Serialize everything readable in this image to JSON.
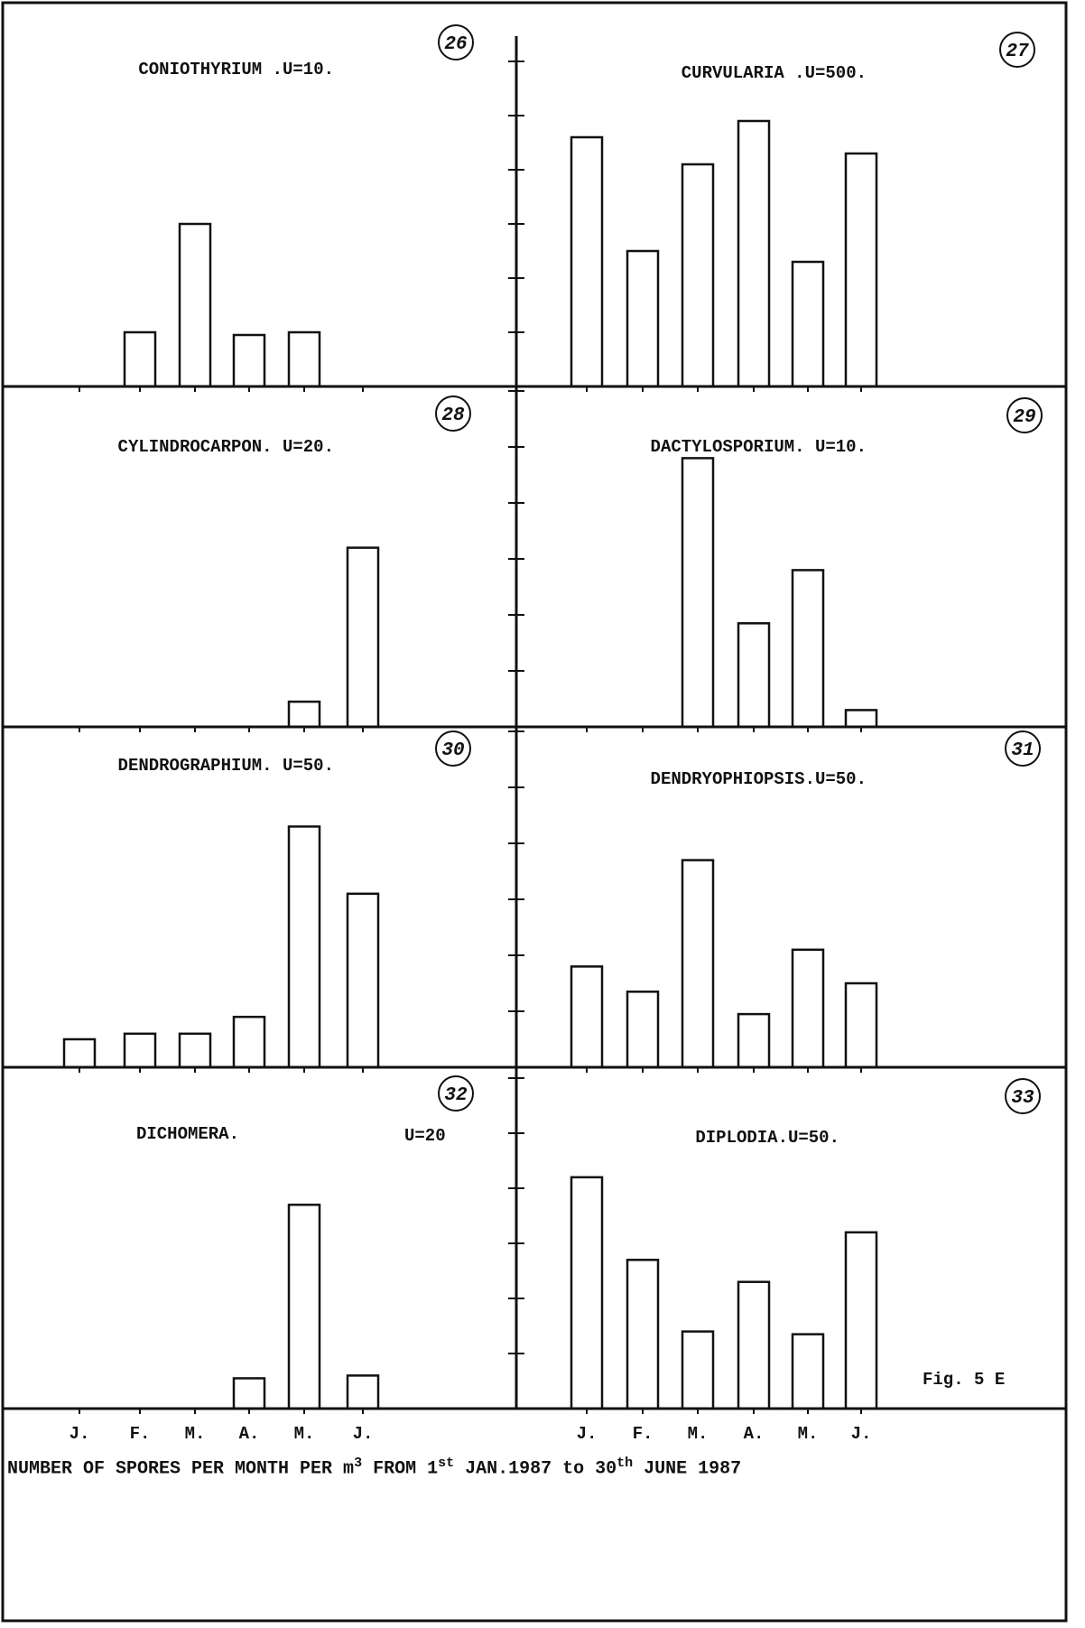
{
  "figure": {
    "label": "Fig. 5 E",
    "caption": {
      "pre": "NUMBER OF SPORES PER MONTH PER m",
      "sup1": "3",
      "mid1": " FROM 1",
      "sup2": "st",
      "mid2": " JAN.1987 to 30",
      "sup3": "th",
      "post": " JUNE 1987"
    },
    "months_left": [
      "J.",
      "F.",
      "M.",
      "A.",
      "M.",
      "J."
    ],
    "months_right": [
      "J.",
      "F.",
      "M.",
      "A.",
      "M.",
      "J."
    ]
  },
  "chart_data": [
    {
      "type": "bar",
      "number": "26",
      "title": "CONIOTHYRIUM .U=10.",
      "unit": 10,
      "categories": [
        "J.",
        "F.",
        "M.",
        "A.",
        "M.",
        "J."
      ],
      "values": [
        0,
        1.0,
        3.0,
        0.95,
        1.0,
        0
      ]
    },
    {
      "type": "bar",
      "number": "27",
      "title": "CURVULARIA .U=500.",
      "unit": 500,
      "categories": [
        "J.",
        "F.",
        "M.",
        "A.",
        "M.",
        "J."
      ],
      "values": [
        4.6,
        2.5,
        4.1,
        4.9,
        2.3,
        4.3
      ]
    },
    {
      "type": "bar",
      "number": "28",
      "title": "CYLINDROCARPON. U=20.",
      "unit": 20,
      "categories": [
        "J.",
        "F.",
        "M.",
        "A.",
        "M.",
        "J."
      ],
      "values": [
        0,
        0,
        0,
        0,
        0.45,
        3.2
      ]
    },
    {
      "type": "bar",
      "number": "29",
      "title": "DACTYLOSPORIUM. U=10.",
      "unit": 10,
      "categories": [
        "J.",
        "F.",
        "M.",
        "A.",
        "M.",
        "J."
      ],
      "values": [
        0,
        0,
        4.8,
        1.85,
        2.8,
        0.3
      ]
    },
    {
      "type": "bar",
      "number": "30",
      "title": "DENDROGRAPHIUM. U=50.",
      "unit": 50,
      "categories": [
        "J.",
        "F.",
        "M.",
        "A.",
        "M.",
        "J."
      ],
      "values": [
        0.5,
        0.6,
        0.6,
        0.9,
        4.3,
        3.1
      ]
    },
    {
      "type": "bar",
      "number": "31",
      "title": "DENDRYOPHIOPSIS.U=50.",
      "unit": 50,
      "categories": [
        "J.",
        "F.",
        "M.",
        "A.",
        "M.",
        "J."
      ],
      "values": [
        1.8,
        1.35,
        3.7,
        0.95,
        2.1,
        1.5
      ]
    },
    {
      "type": "bar",
      "number": "32",
      "title": "DICHOMERA.",
      "unit_label": "U=20",
      "unit": 20,
      "categories": [
        "J.",
        "F.",
        "M.",
        "A.",
        "M.",
        "J."
      ],
      "values": [
        0,
        0,
        0,
        0.55,
        3.7,
        0.6
      ]
    },
    {
      "type": "bar",
      "number": "33",
      "title": "DIPLODIA.U=50.",
      "unit": 50,
      "categories": [
        "J.",
        "F.",
        "M.",
        "A.",
        "M.",
        "J."
      ],
      "values": [
        4.2,
        2.7,
        1.4,
        2.3,
        1.35,
        3.2
      ]
    }
  ]
}
